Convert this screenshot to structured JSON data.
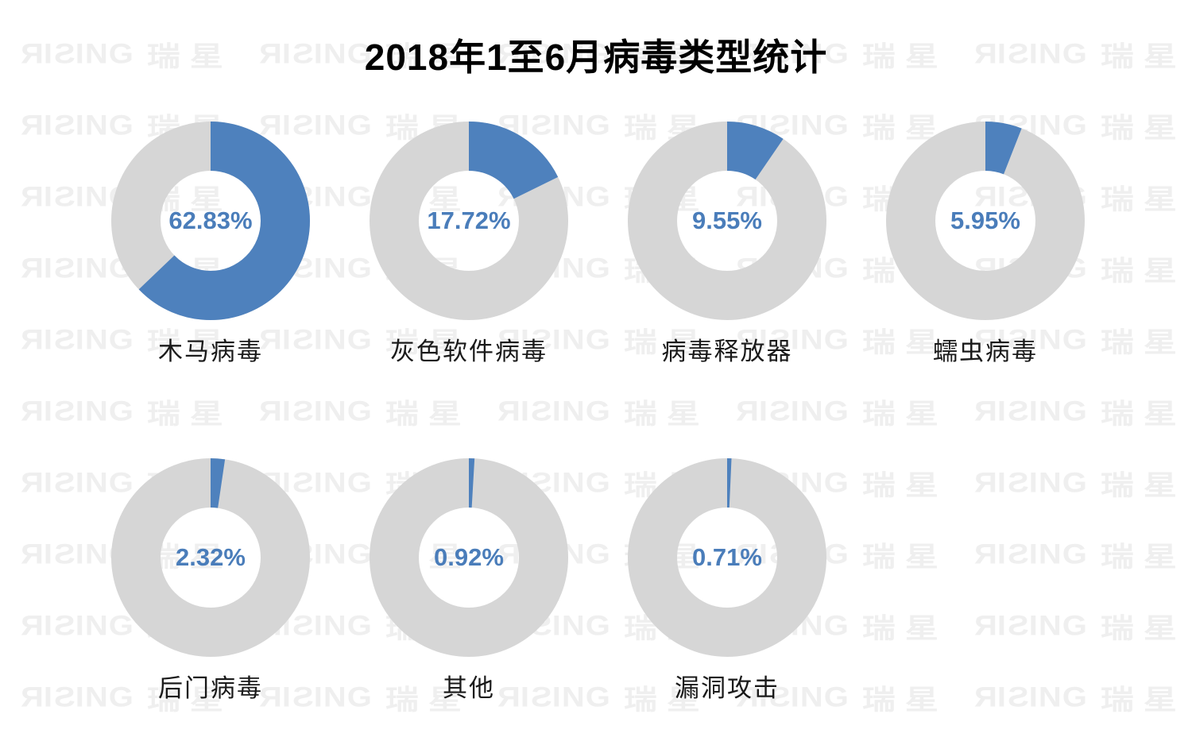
{
  "title": "2018年1至6月病毒类型统计",
  "watermark": {
    "brand_en": "RISING",
    "brand_cn": "瑞星",
    "color": "#efefef"
  },
  "colors": {
    "slice_blue": "#4e81bd",
    "remainder_gray": "#d6d6d6",
    "value_text_blue": "#4a7dba",
    "label_text": "#1a1a1a",
    "title_text": "#000000",
    "background": "#ffffff"
  },
  "chart_data": {
    "type": "pie",
    "subtype": "donut-grid",
    "title": "2018年1至6月病毒类型统计",
    "unit": "%",
    "layout": {
      "row_counts": [
        4,
        3
      ],
      "start_angle_deg": 0,
      "direction": "clockwise",
      "hole_ratio": 0.5,
      "legend": "none",
      "value_label_position": "center",
      "category_label_position": "below"
    },
    "slices": [
      {
        "label": "木马病毒",
        "value": 62.83,
        "value_label": "62.83%"
      },
      {
        "label": "灰色软件病毒",
        "value": 17.72,
        "value_label": "17.72%"
      },
      {
        "label": "病毒释放器",
        "value": 9.55,
        "value_label": "9.55%"
      },
      {
        "label": "蠕虫病毒",
        "value": 5.95,
        "value_label": "5.95%"
      },
      {
        "label": "后门病毒",
        "value": 2.32,
        "value_label": "2.32%"
      },
      {
        "label": "其他",
        "value": 0.92,
        "value_label": "0.92%"
      },
      {
        "label": "漏洞攻击",
        "value": 0.71,
        "value_label": "0.71%"
      }
    ]
  }
}
